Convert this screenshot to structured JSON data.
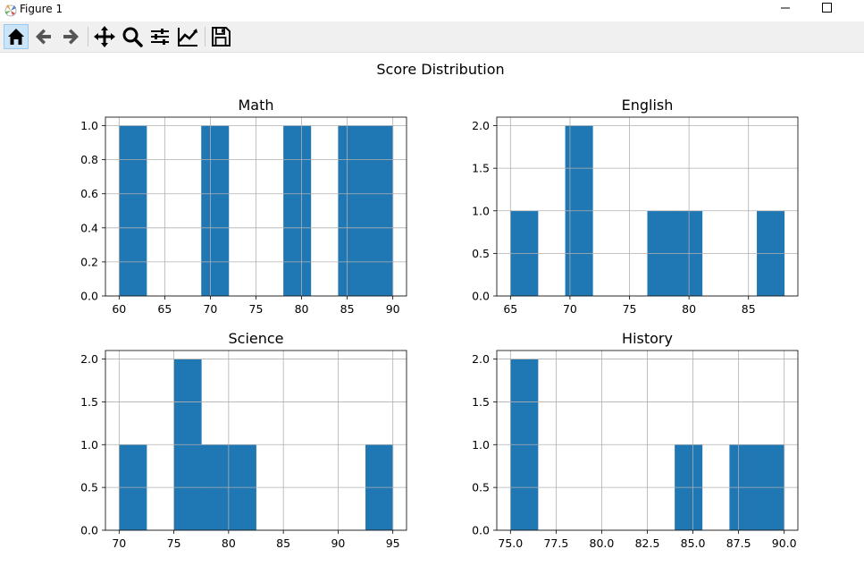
{
  "window": {
    "title": "Figure 1",
    "icon": "matplotlib-icon"
  },
  "toolbar": {
    "buttons": [
      "home-icon",
      "back-arrow-icon",
      "forward-arrow-icon",
      "pan-icon",
      "zoom-icon",
      "subplots-icon",
      "customize-icon",
      "save-icon"
    ]
  },
  "chart_data": {
    "title": "Score Distribution",
    "panels": [
      {
        "type": "bar",
        "title": "Math",
        "bin_edges": [
          60,
          63,
          66,
          69,
          72,
          75,
          78,
          81,
          84,
          87,
          90
        ],
        "counts": [
          1,
          0,
          0,
          1,
          0,
          0,
          1,
          0,
          1,
          1
        ],
        "xlim": [
          58.5,
          91.5
        ],
        "ylim": [
          0,
          1.05
        ],
        "xticks": [
          60,
          65,
          70,
          75,
          80,
          85,
          90
        ],
        "xtick_labels": [
          "60",
          "65",
          "70",
          "75",
          "80",
          "85",
          "90"
        ],
        "yticks": [
          0,
          0.2,
          0.4,
          0.6,
          0.8,
          1.0
        ],
        "ytick_labels": [
          "0.0",
          "0.2",
          "0.4",
          "0.6",
          "0.8",
          "1.0"
        ],
        "grid": true,
        "color": "#1f77b4"
      },
      {
        "type": "bar",
        "title": "English",
        "bin_edges": [
          65,
          67.3,
          69.6,
          71.9,
          74.2,
          76.5,
          78.8,
          81.1,
          83.4,
          85.7,
          88
        ],
        "counts": [
          1,
          0,
          2,
          0,
          0,
          1,
          1,
          0,
          0,
          1
        ],
        "xlim": [
          63.85,
          89.15
        ],
        "ylim": [
          0,
          2.1
        ],
        "xticks": [
          65,
          70,
          75,
          80,
          85
        ],
        "xtick_labels": [
          "65",
          "70",
          "75",
          "80",
          "85"
        ],
        "yticks": [
          0,
          0.5,
          1.0,
          1.5,
          2.0
        ],
        "ytick_labels": [
          "0.0",
          "0.5",
          "1.0",
          "1.5",
          "2.0"
        ],
        "grid": true,
        "color": "#1f77b4"
      },
      {
        "type": "bar",
        "title": "Science",
        "bin_edges": [
          70,
          72.5,
          75,
          77.5,
          80,
          82.5,
          85,
          87.5,
          90,
          92.5,
          95
        ],
        "counts": [
          1,
          0,
          2,
          1,
          1,
          0,
          0,
          0,
          0,
          1
        ],
        "xlim": [
          68.75,
          96.25
        ],
        "ylim": [
          0,
          2.1
        ],
        "xticks": [
          70,
          75,
          80,
          85,
          90,
          95
        ],
        "xtick_labels": [
          "70",
          "75",
          "80",
          "85",
          "90",
          "95"
        ],
        "yticks": [
          0,
          0.5,
          1.0,
          1.5,
          2.0
        ],
        "ytick_labels": [
          "0.0",
          "0.5",
          "1.0",
          "1.5",
          "2.0"
        ],
        "grid": true,
        "color": "#1f77b4"
      },
      {
        "type": "bar",
        "title": "History",
        "bin_edges": [
          75,
          76.5,
          78,
          79.5,
          81,
          82.5,
          84,
          85.5,
          87,
          88.5,
          90
        ],
        "counts": [
          2,
          0,
          0,
          0,
          0,
          0,
          1,
          0,
          1,
          1
        ],
        "xlim": [
          74.25,
          90.75
        ],
        "ylim": [
          0,
          2.1
        ],
        "xticks": [
          75,
          77.5,
          80,
          82.5,
          85,
          87.5,
          90
        ],
        "xtick_labels": [
          "75.0",
          "77.5",
          "80.0",
          "82.5",
          "85.0",
          "87.5",
          "90.0"
        ],
        "yticks": [
          0,
          0.5,
          1.0,
          1.5,
          2.0
        ],
        "ytick_labels": [
          "0.0",
          "0.5",
          "1.0",
          "1.5",
          "2.0"
        ],
        "grid": true,
        "color": "#1f77b4"
      }
    ]
  }
}
